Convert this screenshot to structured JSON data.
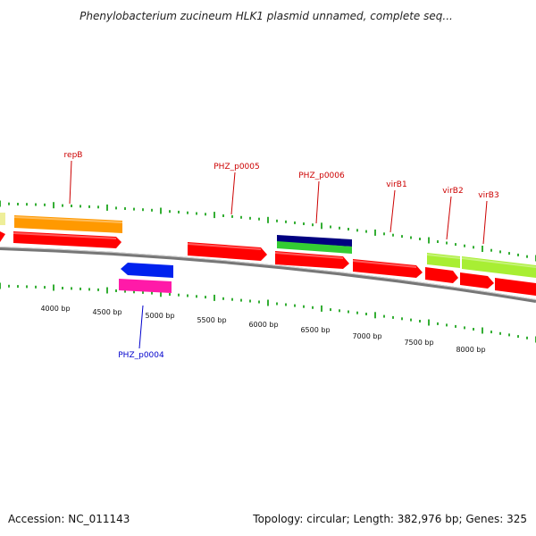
{
  "title": "Phenylobacterium zucineum HLK1 plasmid unnamed, complete seq...",
  "accession_text": "Accession: NC_011143",
  "summary_text": "Topology: circular; Length: 382,976 bp; Genes: 325",
  "colors": {
    "gene_red": "#ff0000",
    "orange": "#ff9900",
    "blue": "#0022ee",
    "magenta": "#ff1aa8",
    "navy": "#000080",
    "green": "#33cc33",
    "light_green": "#a8ee33",
    "cream": "#eeee99",
    "label_red": "#cc0000",
    "label_blue": "#0000cc",
    "tick_green": "#009900"
  },
  "bp_labels": [
    "4000 bp",
    "4500 bp",
    "5000 bp",
    "5500 bp",
    "6000 bp",
    "6500 bp",
    "7000 bp",
    "7500 bp",
    "8000 bp"
  ],
  "gene_labels": [
    {
      "name": "repB",
      "color": "label_red"
    },
    {
      "name": "PHZ_p0005",
      "color": "label_red"
    },
    {
      "name": "PHZ_p0006",
      "color": "label_red"
    },
    {
      "name": "virB1",
      "color": "label_red"
    },
    {
      "name": "virB2",
      "color": "label_red"
    },
    {
      "name": "virB3",
      "color": "label_red"
    },
    {
      "name": "PHZ_p0004",
      "color": "label_blue"
    }
  ]
}
